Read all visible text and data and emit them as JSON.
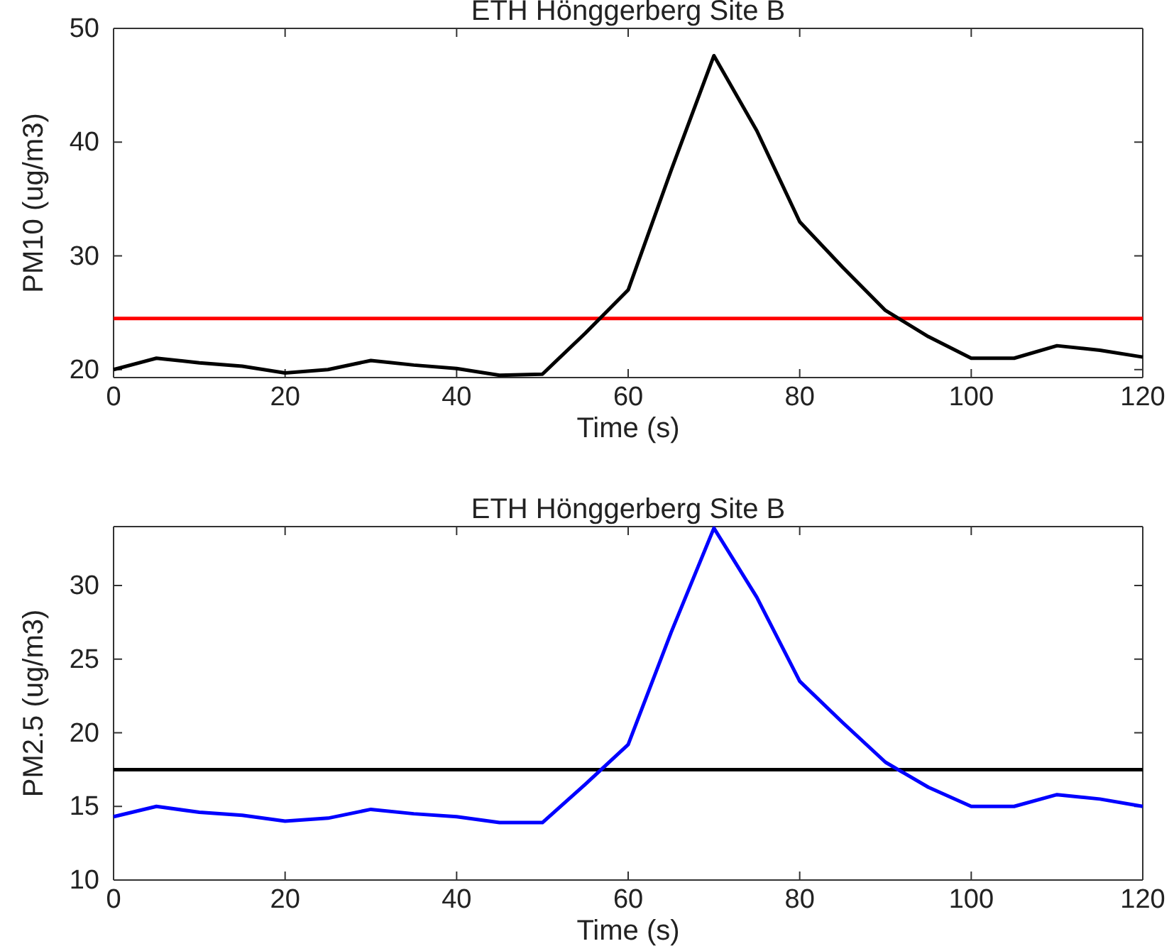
{
  "chart_data": [
    {
      "type": "line",
      "title": "ETH Hönggerberg Site B",
      "xlabel": "Time (s)",
      "ylabel": "PM10 (ug/m3)",
      "x": [
        0,
        5,
        10,
        15,
        20,
        25,
        30,
        35,
        40,
        45,
        50,
        55,
        60,
        65,
        70,
        75,
        80,
        85,
        90,
        95,
        100,
        105,
        110,
        115,
        120
      ],
      "series": [
        {
          "color": "#000000",
          "values": [
            20,
            21,
            20.6,
            20.3,
            19.7,
            20,
            20.8,
            20.4,
            20.1,
            19.5,
            19.6,
            23.2,
            27,
            37.5,
            47.6,
            41,
            33,
            29,
            25.2,
            22.9,
            21,
            21,
            22.1,
            21.7,
            21.1
          ]
        }
      ],
      "ref_lines": [
        {
          "axis": "y",
          "value": 24.5,
          "color": "#ff0000"
        }
      ],
      "xlim": [
        0,
        120
      ],
      "xticks": [
        0,
        20,
        40,
        60,
        80,
        100,
        120
      ],
      "ylim": [
        19.3,
        50
      ],
      "yticks": [
        20,
        30,
        40,
        50
      ],
      "grid": false
    },
    {
      "type": "line",
      "title": "ETH Hönggerberg Site B",
      "xlabel": "Time (s)",
      "ylabel": "PM2.5 (ug/m3)",
      "x": [
        0,
        5,
        10,
        15,
        20,
        25,
        30,
        35,
        40,
        45,
        50,
        55,
        60,
        65,
        70,
        75,
        80,
        85,
        90,
        95,
        100,
        105,
        110,
        115,
        120
      ],
      "series": [
        {
          "color": "#0000ff",
          "values": [
            14.3,
            15,
            14.6,
            14.4,
            14,
            14.2,
            14.8,
            14.5,
            14.3,
            13.9,
            13.9,
            16.5,
            19.2,
            26.8,
            33.9,
            29.2,
            23.5,
            20.7,
            18,
            16.3,
            15,
            15,
            15.8,
            15.5,
            15
          ]
        }
      ],
      "ref_lines": [
        {
          "axis": "y",
          "value": 17.5,
          "color": "#000000"
        }
      ],
      "xlim": [
        0,
        120
      ],
      "xticks": [
        0,
        20,
        40,
        60,
        80,
        100,
        120
      ],
      "ylim": [
        10,
        34
      ],
      "yticks": [
        10,
        15,
        20,
        25,
        30
      ],
      "grid": false
    }
  ]
}
